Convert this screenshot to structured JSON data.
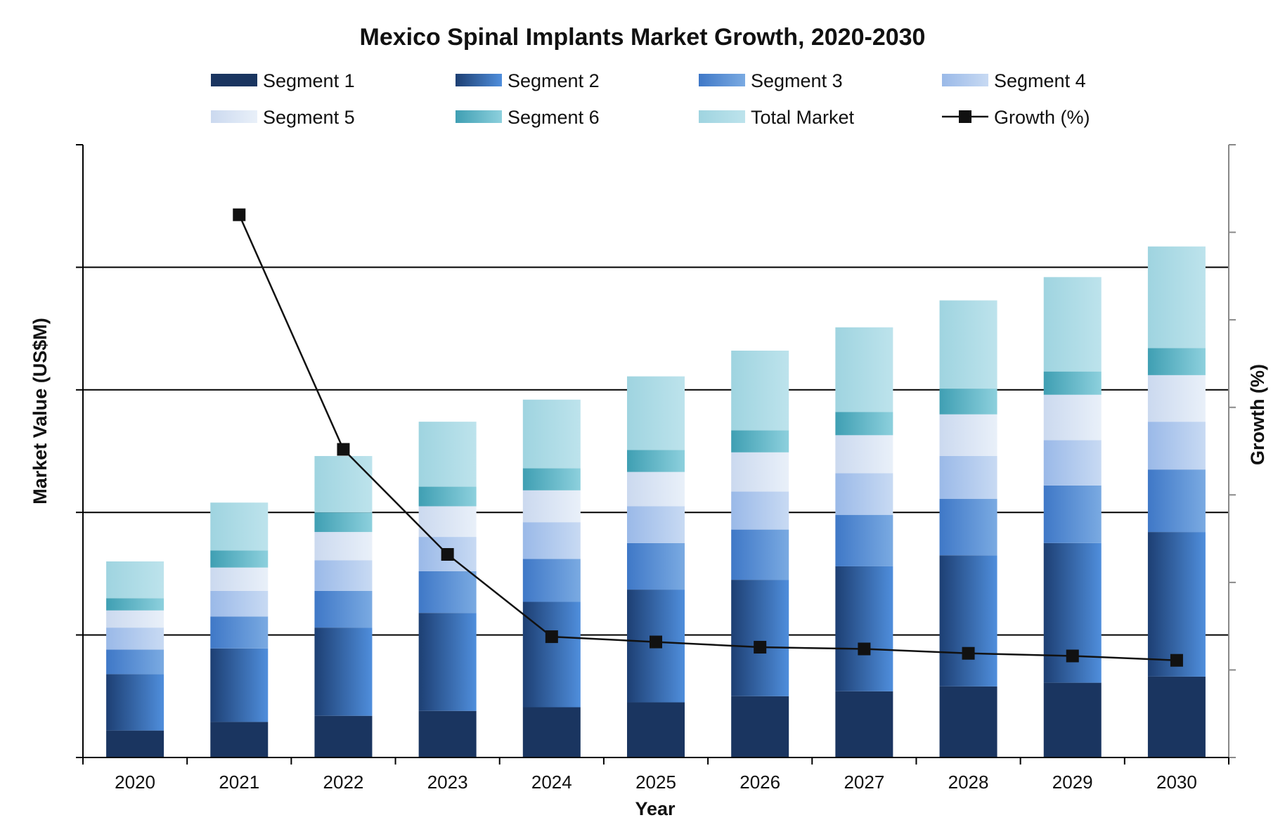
{
  "chart_data": {
    "type": "bar",
    "stacked": true,
    "title": "Mexico Spinal Implants Market Growth, 2020-2030",
    "xlabel": "Year",
    "ylabel": "Market Value (US$M)",
    "y2label": "Growth (%)",
    "categories": [
      "2020",
      "2021",
      "2022",
      "2023",
      "2024",
      "2025",
      "2026",
      "2027",
      "2028",
      "2029",
      "2030"
    ],
    "ylim": [
      0,
      250
    ],
    "y2lim": [
      0,
      35
    ],
    "grid": true,
    "legend_position": "top",
    "series": [
      {
        "name": "Segment 1",
        "kind": "bar",
        "color_dark": "#1a3560",
        "color_light": "#1a3560",
        "values": [
          11,
          14.5,
          17,
          19,
          20.5,
          22.5,
          25,
          27,
          29,
          30.5,
          33
        ]
      },
      {
        "name": "Segment 2",
        "kind": "bar",
        "color_dark": "#1d3f73",
        "color_light": "#4f8edc",
        "values": [
          23,
          30,
          36,
          40,
          43,
          46,
          47.5,
          51,
          53.5,
          57,
          59
        ]
      },
      {
        "name": "Segment 3",
        "kind": "bar",
        "color_dark": "#3f78c7",
        "color_light": "#7aaae2",
        "values": [
          10,
          13,
          15,
          17,
          17.5,
          19,
          20.5,
          21,
          23,
          23.5,
          25.5
        ]
      },
      {
        "name": "Segment 4",
        "kind": "bar",
        "color_dark": "#9ab9e8",
        "color_light": "#c8daf3",
        "values": [
          9,
          10.5,
          12.5,
          14,
          15,
          15,
          15.5,
          17,
          17.5,
          18.5,
          19.5
        ]
      },
      {
        "name": "Segment 5",
        "kind": "bar",
        "color_dark": "#cbd9ef",
        "color_light": "#e9f0f9",
        "values": [
          7,
          9.5,
          11.5,
          12.5,
          13,
          14,
          16,
          15.5,
          17,
          18.5,
          19
        ]
      },
      {
        "name": "Segment 6",
        "kind": "bar",
        "color_dark": "#3f9fb3",
        "color_light": "#8dd0dd",
        "values": [
          5,
          7,
          8,
          8,
          9,
          9,
          9,
          9.5,
          10.5,
          9.5,
          11
        ]
      },
      {
        "name": "Total Market",
        "kind": "bar",
        "color_dark": "#9fd4e0",
        "color_light": "#bde3ec",
        "values": [
          15,
          19.5,
          23,
          26.5,
          28,
          30,
          32.5,
          34.5,
          36,
          38.5,
          41.5
        ]
      },
      {
        "name": "Growth (%)",
        "kind": "line",
        "axis": "y2",
        "color": "#111111",
        "values": [
          null,
          31,
          17.6,
          11.6,
          6.9,
          6.6,
          6.3,
          6.2,
          5.95,
          5.8,
          5.55
        ]
      }
    ]
  }
}
